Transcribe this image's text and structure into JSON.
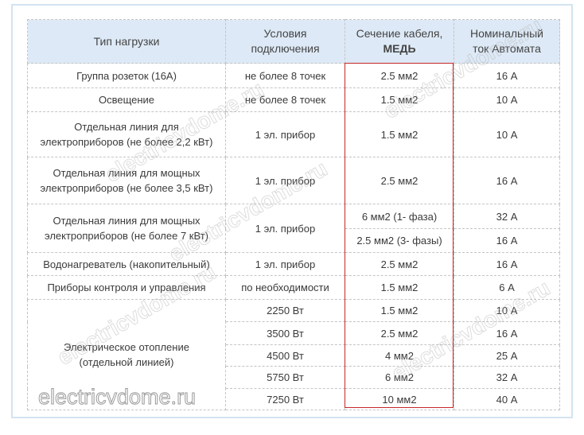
{
  "watermark": "electricvdome.ru",
  "accent_color": "#c62828",
  "header_bg": "#dde9f6",
  "headers": {
    "load_type": "Тип нагрузки",
    "conditions_1": "Условия",
    "conditions_2": "подключения",
    "section_1": "Сечение кабеля,",
    "section_2": "МЕДЬ",
    "breaker_1": "Номинальный",
    "breaker_2": "ток Автомата"
  },
  "rows": [
    {
      "load": "Группа розеток (16А)",
      "cond": "не более 8 точек",
      "section": "2.5 мм2",
      "breaker": "16 А"
    },
    {
      "load": "Освещение",
      "cond": "не более 8 точек",
      "section": "1.5 мм2",
      "breaker": "10 А"
    },
    {
      "load_1": "Отдельная линия для",
      "load_2": "электроприборов (не более 2,2 кВт)",
      "cond": "1 эл. прибор",
      "section": "1.5 мм2",
      "breaker": "10 А"
    },
    {
      "load_1": "Отдельная линия для мощных",
      "load_2": "электроприборов (не более 3,5 кВт)",
      "cond": "1 эл. прибор",
      "section": "2.5 мм2",
      "breaker": "16 А"
    },
    {
      "load_1": "Отдельная линия для мощных",
      "load_2": "электроприборов (не более 7 кВт)",
      "cond": "1 эл. прибор",
      "section_a": "6 мм2 (1- фаза)",
      "breaker_a": "32 А",
      "section_b": "2.5 мм2 (3- фазы)",
      "breaker_b": "16 А"
    },
    {
      "load": "Водонагреватель (накопительный)",
      "cond": "1 эл. прибор",
      "section": "2.5 мм2",
      "breaker": "16 А"
    },
    {
      "load": "Приборы контроля и управления",
      "cond": "по необходимости",
      "section": "1.5 мм2",
      "breaker": "6 А"
    }
  ],
  "heating": {
    "load_1": "Электрическое отопление",
    "load_2": "(отдельной линией)",
    "items": [
      {
        "power": "2250 Вт",
        "section": "1.5 мм2",
        "breaker": "10 А"
      },
      {
        "power": "3500 Вт",
        "section": "2.5 мм2",
        "breaker": "16 А"
      },
      {
        "power": "4500 Вт",
        "section": "4 мм2",
        "breaker": "25 А"
      },
      {
        "power": "5750 Вт",
        "section": "6 мм2",
        "breaker": "32 А"
      },
      {
        "power": "7250 Вт",
        "section": "10 мм2",
        "breaker": "40 А"
      }
    ]
  }
}
